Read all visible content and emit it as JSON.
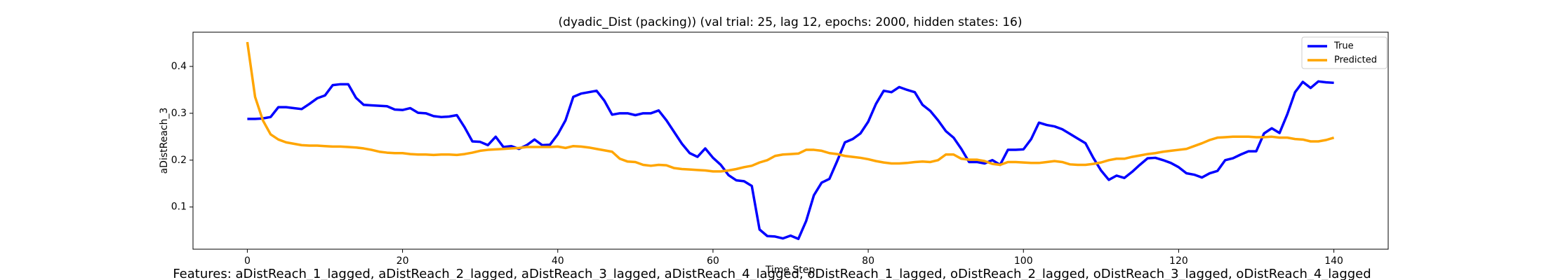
{
  "chart_data": {
    "type": "line",
    "title": "(dyadic_Dist (packing)) (val trial: 25, lag 12, epochs: 2000, hidden states: 16)",
    "xlabel": "Time Step",
    "ylabel": "aDistReach_3",
    "annotation": "Features: aDistReach_1_lagged, aDistReach_2_lagged, aDistReach_3_lagged, aDistReach_4_lagged, oDistReach_1_lagged, oDistReach_2_lagged, oDistReach_3_lagged, oDistReach_4_lagged",
    "x": [
      0,
      1,
      2,
      3,
      4,
      5,
      6,
      7,
      8,
      9,
      10,
      11,
      12,
      13,
      14,
      15,
      16,
      17,
      18,
      19,
      20,
      21,
      22,
      23,
      24,
      25,
      26,
      27,
      28,
      29,
      30,
      31,
      32,
      33,
      34,
      35,
      36,
      37,
      38,
      39,
      40,
      41,
      42,
      43,
      44,
      45,
      46,
      47,
      48,
      49,
      50,
      51,
      52,
      53,
      54,
      55,
      56,
      57,
      58,
      59,
      60,
      61,
      62,
      63,
      64,
      65,
      66,
      67,
      68,
      69,
      70,
      71,
      72,
      73,
      74,
      75,
      76,
      77,
      78,
      79,
      80,
      81,
      82,
      83,
      84,
      85,
      86,
      87,
      88,
      89,
      90,
      91,
      92,
      93,
      94,
      95,
      96,
      97,
      98,
      99,
      100,
      101,
      102,
      103,
      104,
      105,
      106,
      107,
      108,
      109,
      110,
      111,
      112,
      113,
      114,
      115,
      116,
      117,
      118,
      119,
      120,
      121,
      122,
      123,
      124,
      125,
      126,
      127,
      128,
      129,
      130,
      131,
      132,
      133,
      134,
      135,
      136,
      137,
      138,
      139,
      140
    ],
    "series": [
      {
        "name": "True",
        "color": "#0000ff",
        "values": [
          0.288,
          0.288,
          0.289,
          0.292,
          0.313,
          0.313,
          0.311,
          0.309,
          0.32,
          0.332,
          0.338,
          0.36,
          0.362,
          0.362,
          0.333,
          0.318,
          0.317,
          0.316,
          0.315,
          0.308,
          0.307,
          0.311,
          0.301,
          0.3,
          0.294,
          0.292,
          0.293,
          0.296,
          0.27,
          0.24,
          0.239,
          0.232,
          0.25,
          0.228,
          0.23,
          0.224,
          0.232,
          0.244,
          0.232,
          0.233,
          0.255,
          0.285,
          0.335,
          0.342,
          0.345,
          0.348,
          0.327,
          0.297,
          0.3,
          0.3,
          0.296,
          0.3,
          0.3,
          0.306,
          0.285,
          0.26,
          0.235,
          0.215,
          0.207,
          0.225,
          0.205,
          0.19,
          0.168,
          0.157,
          0.155,
          0.145,
          0.052,
          0.038,
          0.037,
          0.033,
          0.039,
          0.032,
          0.07,
          0.125,
          0.152,
          0.16,
          0.198,
          0.238,
          0.245,
          0.257,
          0.282,
          0.32,
          0.348,
          0.345,
          0.356,
          0.35,
          0.345,
          0.318,
          0.305,
          0.285,
          0.262,
          0.248,
          0.224,
          0.196,
          0.196,
          0.193,
          0.2,
          0.19,
          0.222,
          0.222,
          0.223,
          0.245,
          0.28,
          0.275,
          0.272,
          0.266,
          0.256,
          0.246,
          0.236,
          0.205,
          0.178,
          0.158,
          0.167,
          0.162,
          0.175,
          0.19,
          0.204,
          0.205,
          0.2,
          0.194,
          0.185,
          0.172,
          0.169,
          0.163,
          0.172,
          0.177,
          0.2,
          0.204,
          0.212,
          0.219,
          0.219,
          0.257,
          0.268,
          0.258,
          0.298,
          0.345,
          0.367,
          0.354,
          0.368,
          0.366,
          0.365
        ]
      },
      {
        "name": "Predicted",
        "color": "#ffa500",
        "values": [
          0.452,
          0.335,
          0.285,
          0.255,
          0.244,
          0.238,
          0.235,
          0.232,
          0.231,
          0.231,
          0.23,
          0.229,
          0.229,
          0.228,
          0.227,
          0.225,
          0.222,
          0.218,
          0.216,
          0.215,
          0.215,
          0.213,
          0.212,
          0.212,
          0.211,
          0.212,
          0.212,
          0.211,
          0.213,
          0.216,
          0.22,
          0.222,
          0.223,
          0.224,
          0.225,
          0.226,
          0.228,
          0.228,
          0.228,
          0.228,
          0.229,
          0.226,
          0.23,
          0.229,
          0.227,
          0.224,
          0.221,
          0.218,
          0.203,
          0.197,
          0.196,
          0.19,
          0.188,
          0.19,
          0.189,
          0.183,
          0.181,
          0.18,
          0.179,
          0.178,
          0.176,
          0.176,
          0.178,
          0.181,
          0.185,
          0.188,
          0.195,
          0.2,
          0.209,
          0.212,
          0.213,
          0.214,
          0.222,
          0.222,
          0.22,
          0.215,
          0.213,
          0.209,
          0.207,
          0.205,
          0.202,
          0.198,
          0.195,
          0.193,
          0.193,
          0.194,
          0.196,
          0.197,
          0.196,
          0.2,
          0.212,
          0.212,
          0.203,
          0.201,
          0.201,
          0.198,
          0.192,
          0.19,
          0.196,
          0.196,
          0.195,
          0.194,
          0.194,
          0.196,
          0.198,
          0.196,
          0.191,
          0.19,
          0.19,
          0.192,
          0.195,
          0.2,
          0.203,
          0.203,
          0.207,
          0.21,
          0.213,
          0.215,
          0.218,
          0.22,
          0.222,
          0.224,
          0.23,
          0.236,
          0.243,
          0.248,
          0.249,
          0.25,
          0.25,
          0.25,
          0.249,
          0.249,
          0.25,
          0.248,
          0.248,
          0.245,
          0.244,
          0.24,
          0.24,
          0.243,
          0.248
        ]
      }
    ],
    "xlim": [
      -7,
      147
    ],
    "ylim": [
      0.01,
      0.473
    ],
    "xticks": [
      0,
      20,
      40,
      60,
      80,
      100,
      120,
      140
    ],
    "yticks": [
      0.1,
      0.2,
      0.3,
      0.4
    ],
    "grid": false,
    "legend": "upper right"
  }
}
